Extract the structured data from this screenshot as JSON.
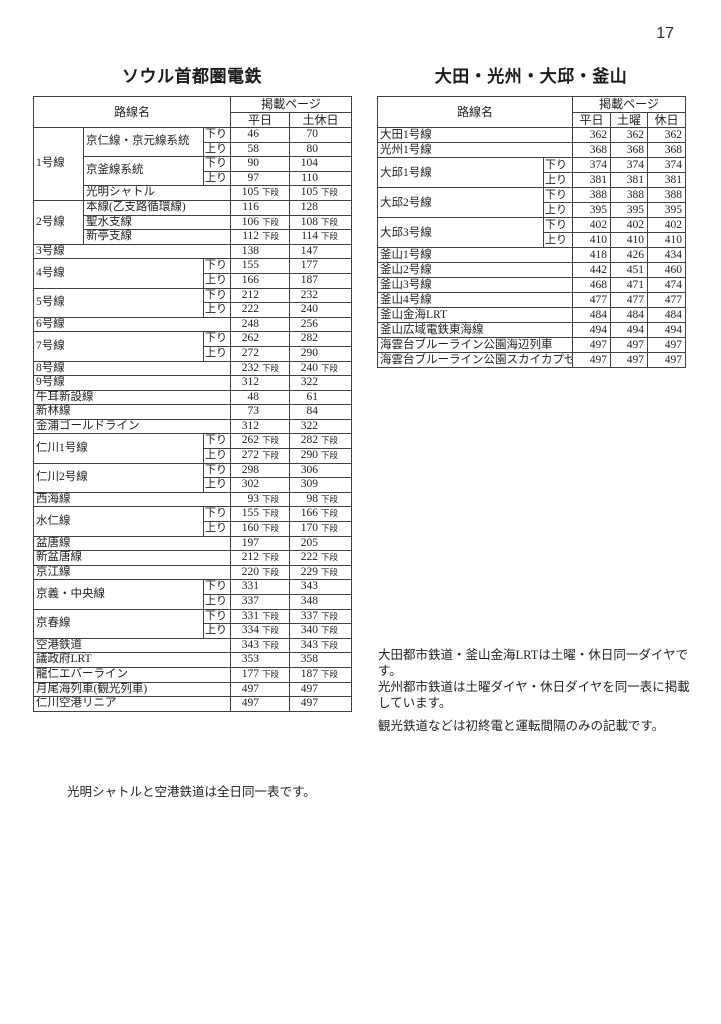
{
  "page_number": "17",
  "dan_label": "下段",
  "left_table": {
    "title": "ソウル首都圏電鉄",
    "header": {
      "route": "路線名",
      "pages": "掲載ページ",
      "cols": [
        "平日",
        "土休日"
      ]
    },
    "rows": [
      [
        {
          "t": "1号線",
          "rs": 5
        },
        {
          "t": "京仁線・京元線系統",
          "rs": 2
        },
        {
          "t": "下り"
        },
        {
          "p": "46"
        },
        {
          "p": "70"
        }
      ],
      [
        {
          "t": "上り"
        },
        {
          "p": "58"
        },
        {
          "p": "80"
        }
      ],
      [
        {
          "t": "京釜線系統",
          "rs": 2
        },
        {
          "t": "下り"
        },
        {
          "p": "90"
        },
        {
          "p": "104"
        }
      ],
      [
        {
          "t": "上り"
        },
        {
          "p": "97"
        },
        {
          "p": "110"
        }
      ],
      [
        {
          "t": "光明シャトル",
          "cs": 2
        },
        {
          "p": "105",
          "d": 1
        },
        {
          "p": "105",
          "d": 1
        }
      ],
      [
        {
          "t": "2号線",
          "rs": 3
        },
        {
          "t": "本線(乙支路循環線)",
          "cs": 2
        },
        {
          "p": "116"
        },
        {
          "p": "128"
        }
      ],
      [
        {
          "t": "聖水支線",
          "cs": 2
        },
        {
          "p": "106",
          "d": 1
        },
        {
          "p": "108",
          "d": 1
        }
      ],
      [
        {
          "t": "新亭支線",
          "cs": 2
        },
        {
          "p": "112",
          "d": 1
        },
        {
          "p": "114",
          "d": 1
        }
      ],
      [
        {
          "t": "3号線",
          "cs": 3
        },
        {
          "p": "138"
        },
        {
          "p": "147"
        }
      ],
      [
        {
          "t": "4号線",
          "cs": 2,
          "rs": 2
        },
        {
          "t": "下り"
        },
        {
          "p": "155"
        },
        {
          "p": "177"
        }
      ],
      [
        {
          "t": "上り"
        },
        {
          "p": "166"
        },
        {
          "p": "187"
        }
      ],
      [
        {
          "t": "5号線",
          "cs": 2,
          "rs": 2
        },
        {
          "t": "下り"
        },
        {
          "p": "212"
        },
        {
          "p": "232"
        }
      ],
      [
        {
          "t": "上り"
        },
        {
          "p": "222"
        },
        {
          "p": "240"
        }
      ],
      [
        {
          "t": "6号線",
          "cs": 3
        },
        {
          "p": "248"
        },
        {
          "p": "256"
        }
      ],
      [
        {
          "t": "7号線",
          "cs": 2,
          "rs": 2
        },
        {
          "t": "下り"
        },
        {
          "p": "262"
        },
        {
          "p": "282"
        }
      ],
      [
        {
          "t": "上り"
        },
        {
          "p": "272"
        },
        {
          "p": "290"
        }
      ],
      [
        {
          "t": "8号線",
          "cs": 3
        },
        {
          "p": "232",
          "d": 1
        },
        {
          "p": "240",
          "d": 1
        }
      ],
      [
        {
          "t": "9号線",
          "cs": 3
        },
        {
          "p": "312"
        },
        {
          "p": "322"
        }
      ],
      [
        {
          "t": "牛耳新設線",
          "cs": 3
        },
        {
          "p": "48"
        },
        {
          "p": "61"
        }
      ],
      [
        {
          "t": "新林線",
          "cs": 3
        },
        {
          "p": "73"
        },
        {
          "p": "84"
        }
      ],
      [
        {
          "t": "金浦ゴールドライン",
          "cs": 3
        },
        {
          "p": "312"
        },
        {
          "p": "322"
        }
      ],
      [
        {
          "t": "仁川1号線",
          "cs": 2,
          "rs": 2
        },
        {
          "t": "下り"
        },
        {
          "p": "262",
          "d": 1
        },
        {
          "p": "282",
          "d": 1
        }
      ],
      [
        {
          "t": "上り"
        },
        {
          "p": "272",
          "d": 1
        },
        {
          "p": "290",
          "d": 1
        }
      ],
      [
        {
          "t": "仁川2号線",
          "cs": 2,
          "rs": 2
        },
        {
          "t": "下り"
        },
        {
          "p": "298"
        },
        {
          "p": "306"
        }
      ],
      [
        {
          "t": "上り"
        },
        {
          "p": "302"
        },
        {
          "p": "309"
        }
      ],
      [
        {
          "t": "西海線",
          "cs": 3
        },
        {
          "p": "93",
          "d": 1
        },
        {
          "p": "98",
          "d": 1
        }
      ],
      [
        {
          "t": "水仁線",
          "cs": 2,
          "rs": 2
        },
        {
          "t": "下り"
        },
        {
          "p": "155",
          "d": 1
        },
        {
          "p": "166",
          "d": 1
        }
      ],
      [
        {
          "t": "上り"
        },
        {
          "p": "160",
          "d": 1
        },
        {
          "p": "170",
          "d": 1
        }
      ],
      [
        {
          "t": "盆唐線",
          "cs": 3
        },
        {
          "p": "197"
        },
        {
          "p": "205"
        }
      ],
      [
        {
          "t": "新盆唐線",
          "cs": 3
        },
        {
          "p": "212",
          "d": 1
        },
        {
          "p": "222",
          "d": 1
        }
      ],
      [
        {
          "t": "京江線",
          "cs": 3
        },
        {
          "p": "220",
          "d": 1
        },
        {
          "p": "229",
          "d": 1
        }
      ],
      [
        {
          "t": "京義・中央線",
          "cs": 2,
          "rs": 2
        },
        {
          "t": "下り"
        },
        {
          "p": "331"
        },
        {
          "p": "343"
        }
      ],
      [
        {
          "t": "上り"
        },
        {
          "p": "337"
        },
        {
          "p": "348"
        }
      ],
      [
        {
          "t": "京春線",
          "cs": 2,
          "rs": 2
        },
        {
          "t": "下り"
        },
        {
          "p": "331",
          "d": 1
        },
        {
          "p": "337",
          "d": 1
        }
      ],
      [
        {
          "t": "上り"
        },
        {
          "p": "334",
          "d": 1
        },
        {
          "p": "340",
          "d": 1
        }
      ],
      [
        {
          "t": "空港鉄道",
          "cs": 3
        },
        {
          "p": "343",
          "d": 1
        },
        {
          "p": "343",
          "d": 1
        }
      ],
      [
        {
          "t": "議政府LRT",
          "cs": 3
        },
        {
          "p": "353"
        },
        {
          "p": "358"
        }
      ],
      [
        {
          "t": "龍仁エバーライン",
          "cs": 3
        },
        {
          "p": "177",
          "d": 1
        },
        {
          "p": "187",
          "d": 1
        }
      ],
      [
        {
          "t": "月尾海列車(観光列車)",
          "cs": 3
        },
        {
          "p": "497"
        },
        {
          "p": "497"
        }
      ],
      [
        {
          "t": "仁川空港リニア",
          "cs": 3
        },
        {
          "p": "497"
        },
        {
          "p": "497"
        }
      ]
    ],
    "footnote": "光明シャトルと空港鉄道は全日同一表です。"
  },
  "right_table": {
    "title": "大田・光州・大邱・釜山",
    "header": {
      "route": "路線名",
      "pages": "掲載ページ",
      "cols": [
        "平日",
        "土曜",
        "休日"
      ]
    },
    "rows": [
      [
        {
          "t": "大田1号線",
          "cs": 2
        },
        {
          "p": "362"
        },
        {
          "p": "362"
        },
        {
          "p": "362"
        }
      ],
      [
        {
          "t": "光州1号線",
          "cs": 2
        },
        {
          "p": "368"
        },
        {
          "p": "368"
        },
        {
          "p": "368"
        }
      ],
      [
        {
          "t": "大邱1号線",
          "rs": 2
        },
        {
          "t": "下り"
        },
        {
          "p": "374"
        },
        {
          "p": "374"
        },
        {
          "p": "374"
        }
      ],
      [
        {
          "t": "上り"
        },
        {
          "p": "381"
        },
        {
          "p": "381"
        },
        {
          "p": "381"
        }
      ],
      [
        {
          "t": "大邱2号線",
          "rs": 2
        },
        {
          "t": "下り"
        },
        {
          "p": "388"
        },
        {
          "p": "388"
        },
        {
          "p": "388"
        }
      ],
      [
        {
          "t": "上り"
        },
        {
          "p": "395"
        },
        {
          "p": "395"
        },
        {
          "p": "395"
        }
      ],
      [
        {
          "t": "大邱3号線",
          "rs": 2
        },
        {
          "t": "下り"
        },
        {
          "p": "402"
        },
        {
          "p": "402"
        },
        {
          "p": "402"
        }
      ],
      [
        {
          "t": "上り"
        },
        {
          "p": "410"
        },
        {
          "p": "410"
        },
        {
          "p": "410"
        }
      ],
      [
        {
          "t": "釜山1号線",
          "cs": 2
        },
        {
          "p": "418"
        },
        {
          "p": "426"
        },
        {
          "p": "434"
        }
      ],
      [
        {
          "t": "釜山2号線",
          "cs": 2
        },
        {
          "p": "442"
        },
        {
          "p": "451"
        },
        {
          "p": "460"
        }
      ],
      [
        {
          "t": "釜山3号線",
          "cs": 2
        },
        {
          "p": "468"
        },
        {
          "p": "471"
        },
        {
          "p": "474"
        }
      ],
      [
        {
          "t": "釜山4号線",
          "cs": 2
        },
        {
          "p": "477"
        },
        {
          "p": "477"
        },
        {
          "p": "477"
        }
      ],
      [
        {
          "t": "釜山金海LRT",
          "cs": 2
        },
        {
          "p": "484"
        },
        {
          "p": "484"
        },
        {
          "p": "484"
        }
      ],
      [
        {
          "t": "釜山広域電鉄東海線",
          "cs": 2
        },
        {
          "p": "494"
        },
        {
          "p": "494"
        },
        {
          "p": "494"
        }
      ],
      [
        {
          "t": "海雲台ブルーライン公園海辺列車",
          "cs": 2
        },
        {
          "p": "497"
        },
        {
          "p": "497"
        },
        {
          "p": "497"
        }
      ],
      [
        {
          "t": "海雲台ブルーライン公園スカイカプセル",
          "cs": 2
        },
        {
          "p": "497"
        },
        {
          "p": "497"
        },
        {
          "p": "497"
        }
      ]
    ],
    "footnotes": [
      "大田都市鉄道・釜山金海LRTは土曜・休日同一ダイヤです。",
      "光州都市鉄道は土曜ダイヤ・休日ダイヤを同一表に掲載しています。",
      "観光鉄道などは初終電と運転間隔のみの記載です。"
    ]
  }
}
